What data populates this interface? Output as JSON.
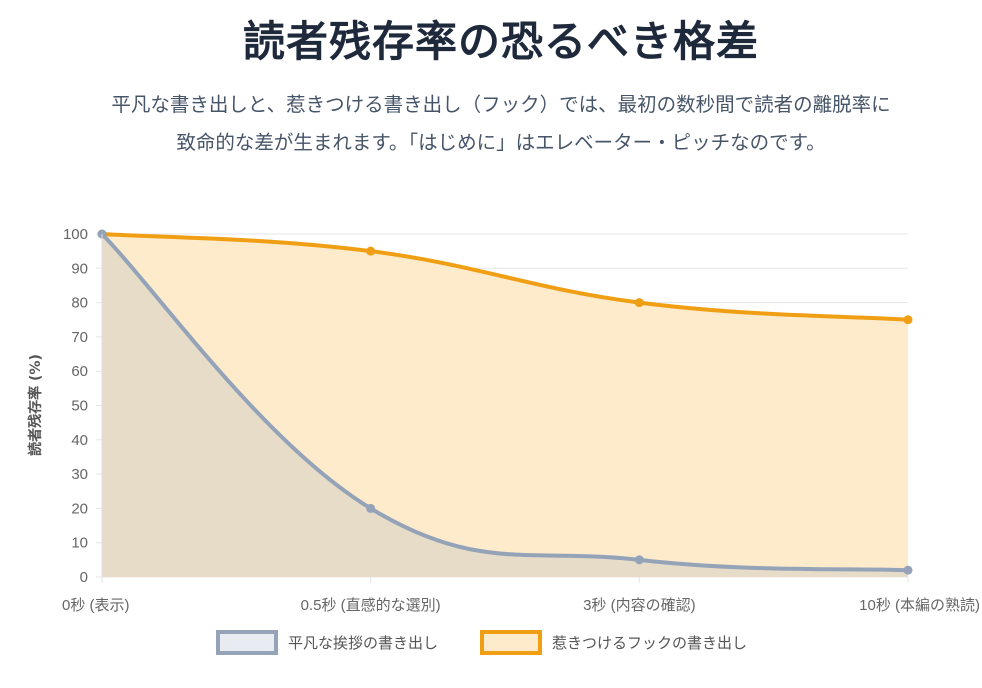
{
  "header": {
    "title": "読者残存率の恐るべき格差",
    "subtitle_line1": "平凡な書き出しと、惹きつける書き出し（フック）では、最初の数秒間で読者の離脱率に",
    "subtitle_line2": "致命的な差が生まれます。「はじめに」はエレベーター・ピッチなのです。"
  },
  "chart_data": {
    "type": "line",
    "categories": [
      "0秒 (表示)",
      "0.5秒 (直感的な選別)",
      "3秒 (内容の確認)",
      "10秒 (本編の熟読)"
    ],
    "ylabel": "読者残存率 (%)",
    "ylim": [
      0,
      100
    ],
    "yticks": [
      0,
      10,
      20,
      30,
      40,
      50,
      60,
      70,
      80,
      90,
      100
    ],
    "grid": true,
    "legend_position": "bottom",
    "series": [
      {
        "name": "平凡な挨拶の書き出し",
        "values": [
          100,
          20,
          5,
          2
        ],
        "color": "#94a3b8",
        "fill": "#e6dcc8"
      },
      {
        "name": "惹きつけるフックの書き出し",
        "values": [
          100,
          95,
          80,
          75
        ],
        "color": "#f09e14",
        "fill": "#fdebcb"
      }
    ]
  }
}
